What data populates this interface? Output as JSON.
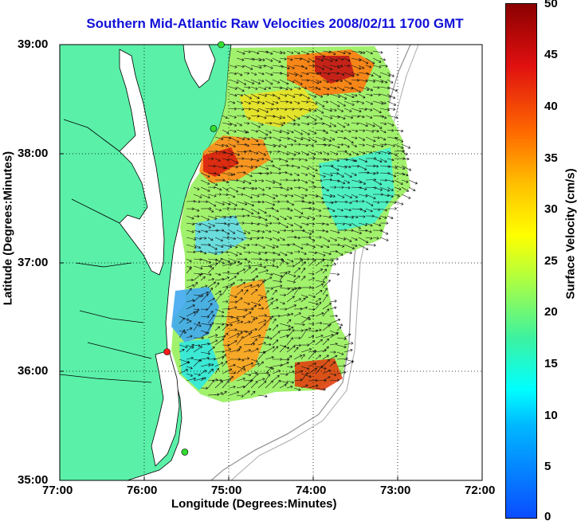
{
  "title": "Southern Mid-Atlantic Raw Velocities 2008/02/11 1700 GMT",
  "x_axis": {
    "label": "Longitude (Degrees:Minutes)",
    "ticks": [
      "77:00",
      "76:00",
      "75:00",
      "74:00",
      "73:00",
      "72:00"
    ]
  },
  "y_axis": {
    "label": "Latitude (Degrees:Minutes)",
    "ticks": [
      "39:00",
      "38:00",
      "37:00",
      "36:00",
      "35:00"
    ]
  },
  "colorbar": {
    "label": "Surface Velocity (cm/s)",
    "ticks": [
      "50",
      "45",
      "40",
      "35",
      "30",
      "25",
      "20",
      "15",
      "10",
      "5",
      "0"
    ],
    "range": [
      0,
      50
    ],
    "colormap": "jet"
  },
  "colors": {
    "title": "#1010d8",
    "land": "#5af0a8",
    "station_green": "#33dd33",
    "station_red": "#ff1a1a"
  },
  "map": {
    "lon_range": [
      -77,
      -72
    ],
    "lat_range": [
      35,
      39
    ],
    "gridlines": "dotted",
    "stations": [
      {
        "lon": -75.09,
        "lat": 39.0,
        "status": "green"
      },
      {
        "lon": -75.18,
        "lat": 38.23,
        "status": "green"
      },
      {
        "lon": -75.73,
        "lat": 36.18,
        "status": "red"
      },
      {
        "lon": -75.52,
        "lat": 35.26,
        "status": "green"
      }
    ]
  }
}
